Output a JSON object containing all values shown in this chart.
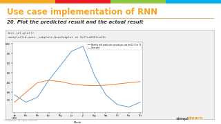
{
  "title": "Use case implementation of RNN",
  "subtitle": "20. Plot the predicted result and the actual result",
  "code_line1": "test_set.plot()",
  "code_line2": "<matplotlib.axes._subplots.AxesSubplot at 0x7fca868fca10>",
  "bg_color": "#f0f0f0",
  "slide_bg": "#ffffff",
  "title_color": "#f5a623",
  "subtitle_color": "#333333",
  "border_color": "#bbbbbb",
  "actual_label": "Monthly milk production: pounds per cow Jan 62 ? Dec 75",
  "predicted_label": "Generated",
  "actual_color": "#5b9bd5",
  "predicted_color": "#ed7d31",
  "actual_y": [
    790,
    760,
    780,
    850,
    910,
    970,
    990,
    870,
    790,
    750,
    740,
    760
  ],
  "predicted_y": [
    760,
    800,
    840,
    850,
    845,
    835,
    830,
    828,
    830,
    835,
    840,
    845
  ],
  "ylim_min": 720,
  "ylim_max": 1010,
  "yticks": [
    770,
    800,
    840,
    880,
    920,
    960,
    1000
  ],
  "months": [
    "Jan\n2012",
    "Feb",
    "Mar",
    "Apr",
    "May",
    "Jun",
    "Jul",
    "Aug",
    "Sep",
    "Oct",
    "Nov",
    "Dec"
  ],
  "accent_colors": [
    "#f5a623",
    "#ed1c24",
    "#8dc63f",
    "#00aeef"
  ],
  "simplylearn_orange": "#f5a623",
  "copyright_color": "#aaaaaa",
  "code_text_color": "#444444",
  "inner_plot_bg": "#ffffff",
  "inner_border_color": "#aaaaaa"
}
